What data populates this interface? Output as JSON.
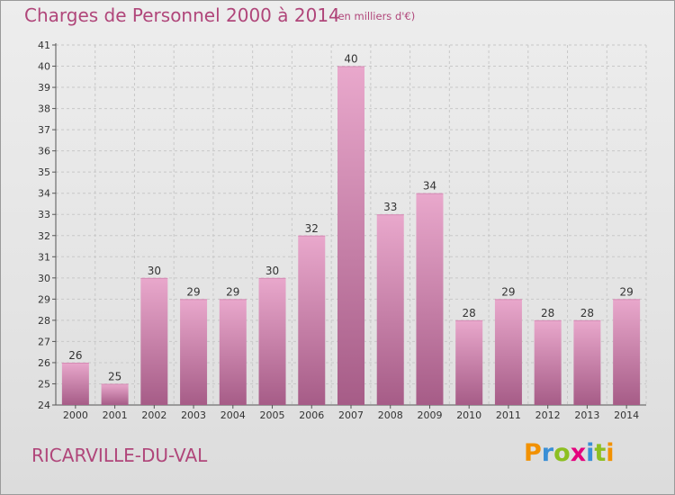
{
  "header": {
    "title": "Charges de Personnel 2000 à 2014",
    "unit": "(en milliers d'€)"
  },
  "footer": {
    "city": "RICARVILLE-DU-VAL",
    "logo_text": "Proxiti",
    "logo_letters": [
      {
        "char": "P",
        "color": "#f29100"
      },
      {
        "char": "r",
        "color": "#3a8fd6"
      },
      {
        "char": "o",
        "color": "#8dbf21"
      },
      {
        "char": "x",
        "color": "#e5007e"
      },
      {
        "char": "i",
        "color": "#3a8fd6"
      },
      {
        "char": "t",
        "color": "#8dbf21"
      },
      {
        "char": "i",
        "color": "#f29100"
      }
    ]
  },
  "colors": {
    "title": "#b0467a",
    "bar_light": "#e9a8cc",
    "bar_dark": "#a65c87",
    "grid": "#c8c8c8",
    "axis": "#555555"
  },
  "chart_data": {
    "type": "bar",
    "title": "Charges de Personnel 2000 à 2014",
    "subtitle": "(en milliers d'€)",
    "xlabel": "",
    "ylabel": "",
    "categories": [
      "2000",
      "2001",
      "2002",
      "2003",
      "2004",
      "2005",
      "2006",
      "2007",
      "2008",
      "2009",
      "2010",
      "2011",
      "2012",
      "2013",
      "2014"
    ],
    "values": [
      26,
      25,
      30,
      29,
      29,
      30,
      32,
      40,
      33,
      34,
      28,
      29,
      28,
      28,
      29
    ],
    "ylim": [
      24,
      41
    ],
    "yticks": [
      24,
      25,
      26,
      27,
      28,
      29,
      30,
      31,
      32,
      33,
      34,
      35,
      36,
      37,
      38,
      39,
      40,
      41
    ],
    "grid": true,
    "data_labels": true,
    "legend": "none"
  }
}
